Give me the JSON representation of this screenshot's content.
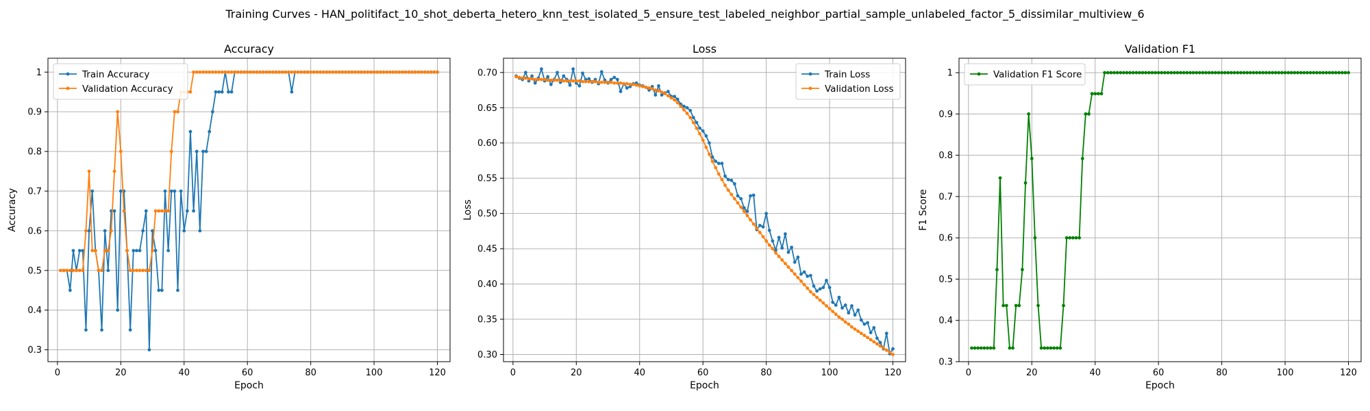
{
  "figure": {
    "suptitle": "Training Curves - HAN_politifact_10_shot_deberta_hetero_knn_test_isolated_5_ensure_test_labeled_neighbor_partial_sample_unlabeled_factor_5_dissimilar_multiview_6"
  },
  "chart_data": [
    {
      "type": "line",
      "title": "Accuracy",
      "xlabel": "Epoch",
      "ylabel": "Accuracy",
      "xlim": [
        -3,
        124
      ],
      "ylim": [
        0.27,
        1.035
      ],
      "xticks": [
        0,
        20,
        40,
        60,
        80,
        100,
        120
      ],
      "yticks": [
        0.3,
        0.4,
        0.5,
        0.6,
        0.7,
        0.8,
        0.9,
        1.0
      ],
      "grid": true,
      "legend_loc": "upper left",
      "series": [
        {
          "name": "Train Accuracy",
          "color": "#1f77b4",
          "x_start": 1,
          "values": [
            0.5,
            0.5,
            0.5,
            0.45,
            0.55,
            0.5,
            0.55,
            0.55,
            0.35,
            0.6,
            0.7,
            0.55,
            0.5,
            0.35,
            0.6,
            0.5,
            0.65,
            0.65,
            0.4,
            0.7,
            0.7,
            0.55,
            0.35,
            0.55,
            0.55,
            0.55,
            0.6,
            0.65,
            0.3,
            0.6,
            0.55,
            0.45,
            0.45,
            0.7,
            0.55,
            0.7,
            0.7,
            0.45,
            0.7,
            0.6,
            0.65,
            0.85,
            0.65,
            0.8,
            0.6,
            0.8,
            0.8,
            0.85,
            0.9,
            0.95,
            0.95,
            0.95,
            1.0,
            0.95,
            0.95,
            1.0,
            1.0,
            1.0,
            1.0,
            1.0,
            1.0,
            1.0,
            1.0,
            1.0,
            1.0,
            1.0,
            1.0,
            1.0,
            1.0,
            1.0,
            1.0,
            1.0,
            1.0,
            0.95,
            1.0,
            1.0,
            1.0,
            1.0,
            1.0,
            1.0,
            1.0,
            1.0,
            1.0,
            1.0,
            1.0,
            1.0,
            1.0,
            1.0,
            1.0,
            1.0,
            1.0,
            1.0,
            1.0,
            1.0,
            1.0,
            1.0,
            1.0,
            1.0,
            1.0,
            1.0,
            1.0,
            1.0,
            1.0,
            1.0,
            1.0,
            1.0,
            1.0,
            1.0,
            1.0,
            1.0,
            1.0,
            1.0,
            1.0,
            1.0,
            1.0,
            1.0,
            1.0,
            1.0,
            1.0,
            1.0
          ]
        },
        {
          "name": "Validation Accuracy",
          "color": "#ff7f0e",
          "x_start": 1,
          "values": [
            0.5,
            0.5,
            0.5,
            0.5,
            0.5,
            0.5,
            0.5,
            0.5,
            0.6,
            0.75,
            0.55,
            0.55,
            0.5,
            0.5,
            0.55,
            0.55,
            0.6,
            0.75,
            0.9,
            0.8,
            0.65,
            0.55,
            0.5,
            0.5,
            0.5,
            0.5,
            0.5,
            0.5,
            0.5,
            0.55,
            0.65,
            0.65,
            0.65,
            0.65,
            0.65,
            0.8,
            0.9,
            0.9,
            0.95,
            0.95,
            0.95,
            0.95,
            1.0,
            1.0,
            1.0,
            1.0,
            1.0,
            1.0,
            1.0,
            1.0,
            1.0,
            1.0,
            1.0,
            1.0,
            1.0,
            1.0,
            1.0,
            1.0,
            1.0,
            1.0,
            1.0,
            1.0,
            1.0,
            1.0,
            1.0,
            1.0,
            1.0,
            1.0,
            1.0,
            1.0,
            1.0,
            1.0,
            1.0,
            1.0,
            1.0,
            1.0,
            1.0,
            1.0,
            1.0,
            1.0,
            1.0,
            1.0,
            1.0,
            1.0,
            1.0,
            1.0,
            1.0,
            1.0,
            1.0,
            1.0,
            1.0,
            1.0,
            1.0,
            1.0,
            1.0,
            1.0,
            1.0,
            1.0,
            1.0,
            1.0,
            1.0,
            1.0,
            1.0,
            1.0,
            1.0,
            1.0,
            1.0,
            1.0,
            1.0,
            1.0,
            1.0,
            1.0,
            1.0,
            1.0,
            1.0,
            1.0,
            1.0,
            1.0,
            1.0,
            1.0
          ]
        }
      ]
    },
    {
      "type": "line",
      "title": "Loss",
      "xlabel": "Epoch",
      "ylabel": "Loss",
      "xlim": [
        -3,
        124
      ],
      "ylim": [
        0.2898,
        0.7202
      ],
      "xticks": [
        0,
        20,
        40,
        60,
        80,
        100,
        120
      ],
      "yticks": [
        0.3,
        0.35,
        0.4,
        0.45,
        0.5,
        0.55,
        0.6,
        0.65,
        0.7
      ],
      "ytick_labels": [
        "0.30",
        "0.35",
        "0.40",
        "0.45",
        "0.50",
        "0.55",
        "0.60",
        "0.65",
        "0.70"
      ],
      "grid": true,
      "legend_loc": "upper right",
      "series": [
        {
          "name": "Train Loss",
          "color": "#1f77b4",
          "x_start": 1,
          "values": [
            0.695,
            0.692,
            0.69,
            0.7,
            0.688,
            0.695,
            0.685,
            0.692,
            0.705,
            0.688,
            0.694,
            0.683,
            0.69,
            0.7,
            0.686,
            0.695,
            0.69,
            0.682,
            0.705,
            0.685,
            0.681,
            0.699,
            0.69,
            0.691,
            0.686,
            0.69,
            0.684,
            0.701,
            0.689,
            0.685,
            0.69,
            0.693,
            0.69,
            0.673,
            0.684,
            0.678,
            0.68,
            0.684,
            0.685,
            0.682,
            0.681,
            0.679,
            0.675,
            0.68,
            0.668,
            0.681,
            0.668,
            0.671,
            0.673,
            0.666,
            0.666,
            0.662,
            0.655,
            0.652,
            0.65,
            0.646,
            0.636,
            0.629,
            0.621,
            0.617,
            0.61,
            0.6,
            0.58,
            0.574,
            0.571,
            0.571,
            0.553,
            0.548,
            0.547,
            0.542,
            0.525,
            0.521,
            0.508,
            0.503,
            0.525,
            0.526,
            0.477,
            0.483,
            0.481,
            0.5,
            0.476,
            0.461,
            0.448,
            0.466,
            0.451,
            0.471,
            0.445,
            0.452,
            0.431,
            0.438,
            0.414,
            0.417,
            0.411,
            0.412,
            0.397,
            0.39,
            0.393,
            0.395,
            0.405,
            0.395,
            0.374,
            0.37,
            0.381,
            0.366,
            0.37,
            0.359,
            0.369,
            0.356,
            0.363,
            0.349,
            0.343,
            0.345,
            0.331,
            0.338,
            0.323,
            0.317,
            0.308,
            0.33,
            0.301,
            0.308
          ]
        },
        {
          "name": "Validation Loss",
          "color": "#ff7f0e",
          "x_start": 1,
          "values": [
            0.694,
            0.693,
            0.692,
            0.692,
            0.691,
            0.691,
            0.69,
            0.69,
            0.69,
            0.69,
            0.689,
            0.689,
            0.689,
            0.689,
            0.689,
            0.688,
            0.688,
            0.688,
            0.688,
            0.688,
            0.688,
            0.687,
            0.687,
            0.687,
            0.687,
            0.687,
            0.686,
            0.686,
            0.686,
            0.686,
            0.686,
            0.685,
            0.685,
            0.685,
            0.684,
            0.684,
            0.683,
            0.683,
            0.682,
            0.681,
            0.68,
            0.679,
            0.678,
            0.677,
            0.675,
            0.674,
            0.672,
            0.67,
            0.667,
            0.664,
            0.661,
            0.657,
            0.652,
            0.647,
            0.642,
            0.636,
            0.629,
            0.621,
            0.613,
            0.604,
            0.594,
            0.584,
            0.574,
            0.565,
            0.556,
            0.548,
            0.54,
            0.533,
            0.527,
            0.521,
            0.515,
            0.509,
            0.503,
            0.497,
            0.491,
            0.485,
            0.479,
            0.473,
            0.467,
            0.461,
            0.455,
            0.45,
            0.444,
            0.439,
            0.434,
            0.429,
            0.424,
            0.419,
            0.414,
            0.409,
            0.404,
            0.399,
            0.394,
            0.389,
            0.385,
            0.381,
            0.377,
            0.373,
            0.369,
            0.365,
            0.361,
            0.357,
            0.353,
            0.35,
            0.346,
            0.343,
            0.339,
            0.336,
            0.333,
            0.33,
            0.327,
            0.324,
            0.321,
            0.318,
            0.315,
            0.312,
            0.309,
            0.306,
            0.303,
            0.3
          ]
        }
      ]
    },
    {
      "type": "line",
      "title": "Validation F1",
      "xlabel": "Epoch",
      "ylabel": "F1 Score",
      "xlim": [
        -3,
        124
      ],
      "ylim": [
        0.3,
        1.035
      ],
      "xticks": [
        0,
        20,
        40,
        60,
        80,
        100,
        120
      ],
      "yticks": [
        0.3,
        0.4,
        0.5,
        0.6,
        0.7,
        0.8,
        0.9,
        1.0
      ],
      "grid": true,
      "legend_loc": "upper left",
      "series": [
        {
          "name": "Validation F1 Score",
          "color": "#008000",
          "x_start": 1,
          "values": [
            0.333,
            0.333,
            0.333,
            0.333,
            0.333,
            0.333,
            0.333,
            0.333,
            0.523,
            0.745,
            0.436,
            0.436,
            0.333,
            0.333,
            0.436,
            0.436,
            0.523,
            0.733,
            0.9,
            0.792,
            0.6,
            0.436,
            0.333,
            0.333,
            0.333,
            0.333,
            0.333,
            0.333,
            0.333,
            0.436,
            0.6,
            0.6,
            0.6,
            0.6,
            0.6,
            0.792,
            0.9,
            0.9,
            0.949,
            0.949,
            0.949,
            0.949,
            1.0,
            1.0,
            1.0,
            1.0,
            1.0,
            1.0,
            1.0,
            1.0,
            1.0,
            1.0,
            1.0,
            1.0,
            1.0,
            1.0,
            1.0,
            1.0,
            1.0,
            1.0,
            1.0,
            1.0,
            1.0,
            1.0,
            1.0,
            1.0,
            1.0,
            1.0,
            1.0,
            1.0,
            1.0,
            1.0,
            1.0,
            1.0,
            1.0,
            1.0,
            1.0,
            1.0,
            1.0,
            1.0,
            1.0,
            1.0,
            1.0,
            1.0,
            1.0,
            1.0,
            1.0,
            1.0,
            1.0,
            1.0,
            1.0,
            1.0,
            1.0,
            1.0,
            1.0,
            1.0,
            1.0,
            1.0,
            1.0,
            1.0,
            1.0,
            1.0,
            1.0,
            1.0,
            1.0,
            1.0,
            1.0,
            1.0,
            1.0,
            1.0,
            1.0,
            1.0,
            1.0,
            1.0,
            1.0,
            1.0,
            1.0,
            1.0,
            1.0,
            1.0
          ]
        }
      ]
    }
  ]
}
